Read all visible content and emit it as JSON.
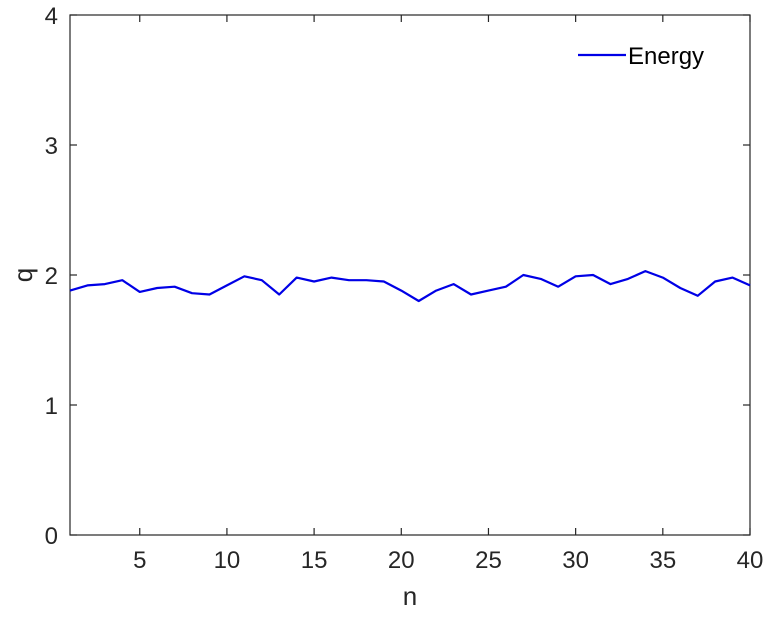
{
  "chart_data": {
    "type": "line",
    "title": "",
    "xlabel": "n",
    "ylabel": "q",
    "xlim": [
      1,
      40
    ],
    "ylim": [
      0,
      4
    ],
    "x_ticks": [
      5,
      10,
      15,
      20,
      25,
      30,
      35,
      40
    ],
    "y_ticks": [
      0,
      1,
      2,
      3,
      4
    ],
    "grid": false,
    "legend_position": "top-right",
    "colors": {
      "series": "#0000e6",
      "axis": "#262626"
    },
    "series": [
      {
        "name": "Energy",
        "x": [
          1,
          2,
          3,
          4,
          5,
          6,
          7,
          8,
          9,
          10,
          11,
          12,
          13,
          14,
          15,
          16,
          17,
          18,
          19,
          20,
          21,
          22,
          23,
          24,
          25,
          26,
          27,
          28,
          29,
          30,
          31,
          32,
          33,
          34,
          35,
          36,
          37,
          38,
          39,
          40
        ],
        "y": [
          1.88,
          1.92,
          1.93,
          1.96,
          1.87,
          1.9,
          1.91,
          1.86,
          1.85,
          1.92,
          1.99,
          1.96,
          1.85,
          1.98,
          1.95,
          1.98,
          1.96,
          1.96,
          1.95,
          1.88,
          1.8,
          1.88,
          1.93,
          1.85,
          1.88,
          1.91,
          2.0,
          1.97,
          1.91,
          1.99,
          2.0,
          1.93,
          1.97,
          2.03,
          1.98,
          1.9,
          1.84,
          1.95,
          1.98,
          1.92
        ]
      }
    ]
  }
}
